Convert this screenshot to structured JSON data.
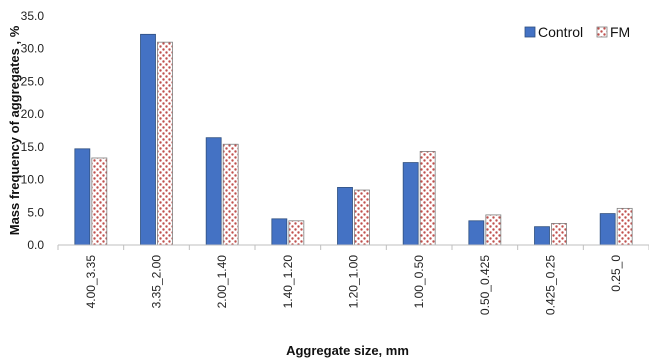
{
  "chart_data": {
    "type": "bar",
    "title": "",
    "xlabel": "Aggregate size, mm",
    "ylabel": "Mass frequency of aggregates , %",
    "categories": [
      "4.00_3.35",
      "3.35_2.00",
      "2.00_1.40",
      "1.40_1.20",
      "1.20_1.00",
      "1.00_0.50",
      "0.50_0.425",
      "0.425_0.25",
      "0.25_0"
    ],
    "series": [
      {
        "name": "Control",
        "values": [
          14.7,
          32.2,
          16.4,
          4.0,
          8.8,
          12.6,
          3.7,
          2.8,
          4.8
        ],
        "color": "#4472c4",
        "pattern": "solid"
      },
      {
        "name": "FM",
        "values": [
          13.3,
          31.0,
          15.4,
          3.7,
          8.4,
          14.3,
          4.6,
          3.3,
          5.6
        ],
        "color": "#ffffff",
        "dot_color": "#c0504d",
        "pattern": "dots"
      }
    ],
    "ylim": [
      0,
      35
    ],
    "y_ticks": [
      "0.0",
      "5.0",
      "10.0",
      "15.0",
      "20.0",
      "25.0",
      "30.0",
      "35.0"
    ],
    "grid": false,
    "legend_position": "top-right"
  }
}
